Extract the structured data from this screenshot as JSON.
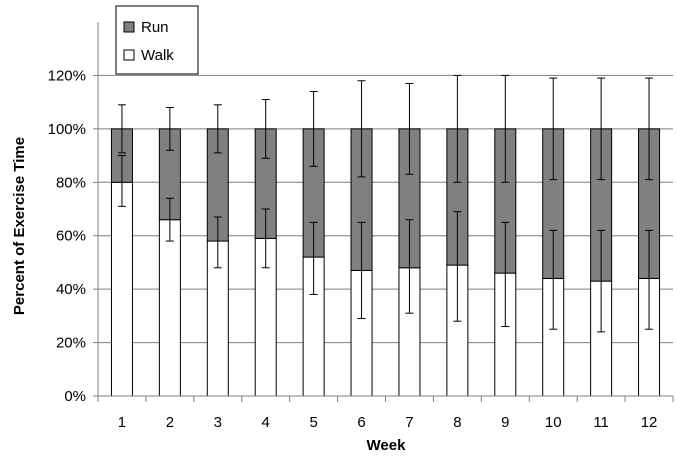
{
  "chart_data": {
    "type": "bar",
    "stacked": true,
    "xlabel": "Week",
    "ylabel": "Percent of Exercise Time",
    "ylim": [
      0,
      140
    ],
    "y_ticks": [
      "0%",
      "20%",
      "40%",
      "60%",
      "80%",
      "100%",
      "120%"
    ],
    "y_tick_values": [
      0,
      20,
      40,
      60,
      80,
      100,
      120
    ],
    "grid": true,
    "legend_position": "top-left",
    "categories": [
      "1",
      "2",
      "3",
      "4",
      "5",
      "6",
      "7",
      "8",
      "9",
      "10",
      "11",
      "12"
    ],
    "series": [
      {
        "name": "Walk",
        "color": "#ffffff",
        "values": [
          80,
          66,
          58,
          59,
          52,
          47,
          48,
          49,
          46,
          44,
          43,
          44
        ],
        "error_upper": [
          90,
          74,
          67,
          70,
          65,
          65,
          66,
          69,
          65,
          62,
          62,
          62
        ],
        "error_lower": [
          71,
          58,
          48,
          48,
          38,
          29,
          31,
          28,
          26,
          25,
          24,
          25
        ]
      },
      {
        "name": "Run",
        "color": "#808080",
        "values": [
          20,
          34,
          42,
          41,
          48,
          53,
          52,
          51,
          54,
          56,
          57,
          56
        ],
        "error_upper": [
          109,
          108,
          109,
          111,
          114,
          118,
          117,
          120,
          120,
          119,
          119,
          119
        ],
        "error_lower": [
          91,
          92,
          91,
          89,
          86,
          82,
          83,
          80,
          80,
          81,
          81,
          81
        ]
      }
    ]
  }
}
